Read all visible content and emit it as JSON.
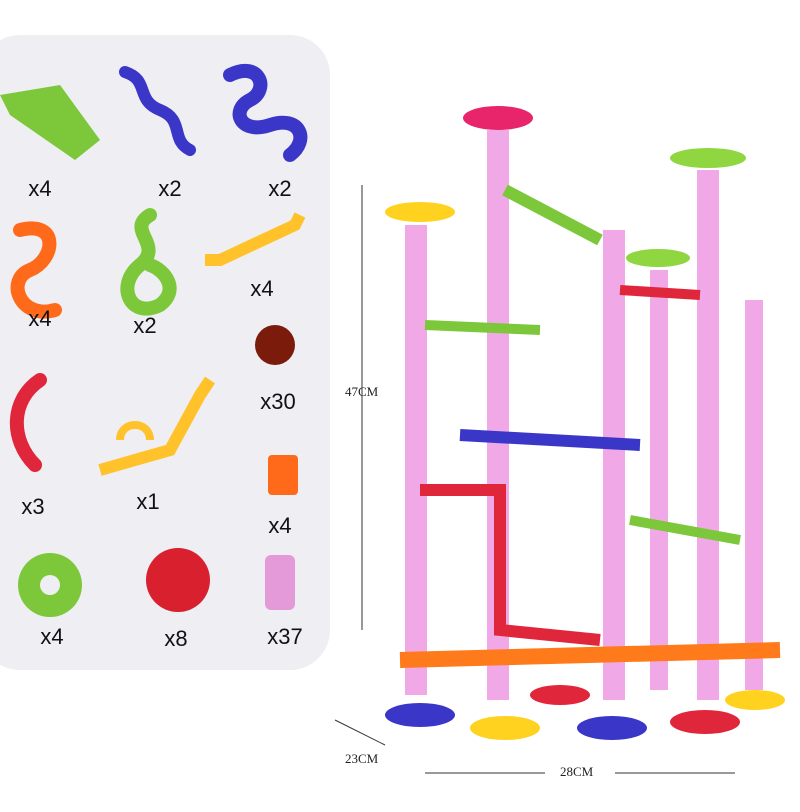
{
  "parts": [
    {
      "qty": "x4"
    },
    {
      "qty": "x2"
    },
    {
      "qty": "x2"
    },
    {
      "qty": "x4"
    },
    {
      "qty": "x2"
    },
    {
      "qty": "x4"
    },
    {
      "qty": "x30"
    },
    {
      "qty": "x3"
    },
    {
      "qty": "x1"
    },
    {
      "qty": "x4"
    },
    {
      "qty": "x4"
    },
    {
      "qty": "x8"
    },
    {
      "qty": "x37"
    }
  ],
  "dimensions": {
    "height": "47CM",
    "depth": "23CM",
    "width": "28CM"
  }
}
